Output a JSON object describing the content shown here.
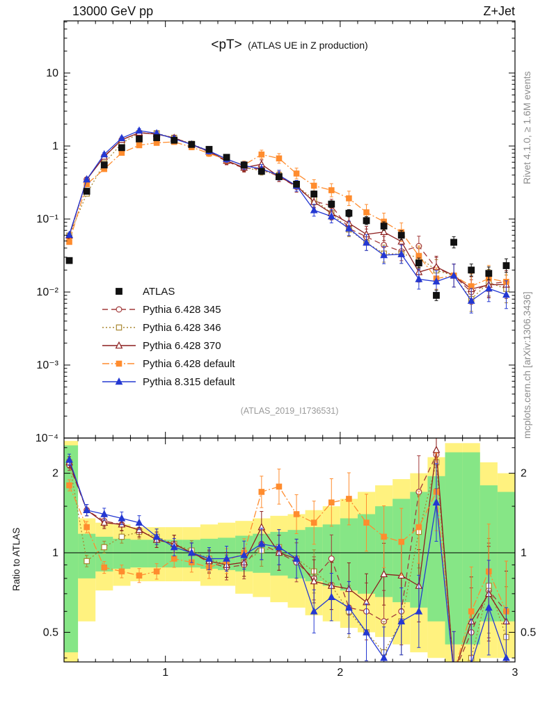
{
  "header": {
    "left": "13000 GeV pp",
    "right": "Z+Jet"
  },
  "panel_title": {
    "main": "<pT>",
    "sub": "(ATLAS UE in Z production)"
  },
  "watermark": "(ATLAS_2019_I1736531)",
  "side_labels": {
    "top": "Rivet 4.1.0, ≥ 1.6M events",
    "bottom": "mcplots.cern.ch [arXiv:1306.3436]"
  },
  "ratio_label": "Ratio to ATLAS",
  "colors": {
    "band_yellow": "#fff27f",
    "band_green": "#86e686",
    "frame": "#000000",
    "muted_text": "#8c8c8c",
    "watermark": "#9a9a9a"
  },
  "axes": {
    "x": {
      "ticks": [
        {
          "v": 1,
          "label": "1"
        },
        {
          "v": 2,
          "label": "2"
        },
        {
          "v": 3,
          "label": "3"
        }
      ]
    },
    "y_top": {
      "ticks": [
        {
          "v": 10,
          "label": "10"
        },
        {
          "v": 1,
          "label": "1"
        },
        {
          "v": 0.1,
          "label": "10⁻¹"
        },
        {
          "v": 0.01,
          "label": "10⁻²"
        },
        {
          "v": 0.001,
          "label": "10⁻³"
        },
        {
          "v": 0.0001,
          "label": "10⁻⁴"
        }
      ]
    },
    "y_ratio": {
      "ticks": [
        {
          "v": 2,
          "label": "2"
        },
        {
          "v": 1,
          "label": "1"
        },
        {
          "v": 0.5,
          "label": "0.5"
        }
      ]
    }
  },
  "legend": {
    "items": [
      {
        "label": "ATLAS"
      },
      {
        "label": "Pythia 6.428 345"
      },
      {
        "label": "Pythia 6.428 346"
      },
      {
        "label": "Pythia 6.428 370"
      },
      {
        "label": "Pythia 6.428 default"
      },
      {
        "label": "Pythia 8.315 default"
      }
    ]
  },
  "chart_data": {
    "type": "line",
    "title": "<pT> (ATLAS UE in Z production)",
    "xlabel": "",
    "ylabel_top": "",
    "ylabel_ratio": "Ratio to ATLAS",
    "x_range": [
      0.42,
      3.0
    ],
    "y_top_range": [
      0.0001,
      50
    ],
    "ratio_range": [
      0.39,
      2.7
    ],
    "x_bin_halfwidth": 0.05,
    "x": [
      0.45,
      0.55,
      0.65,
      0.75,
      0.85,
      0.95,
      1.05,
      1.15,
      1.25,
      1.35,
      1.45,
      1.55,
      1.65,
      1.75,
      1.85,
      1.95,
      2.05,
      2.15,
      2.25,
      2.35,
      2.45,
      2.55,
      2.65,
      2.75,
      2.85,
      2.95
    ],
    "atlas": {
      "name": "ATLAS",
      "color": "#111111",
      "marker": "square",
      "filled": true,
      "line": "none",
      "msize": 4.3,
      "values": [
        0.027,
        0.24,
        0.55,
        0.95,
        1.25,
        1.3,
        1.2,
        1.05,
        0.9,
        0.7,
        0.55,
        0.45,
        0.38,
        0.3,
        0.22,
        0.16,
        0.12,
        0.095,
        0.08,
        0.06,
        0.025,
        0.009,
        0.048,
        0.02,
        0.018,
        0.023
      ]
    },
    "series": [
      {
        "name": "Pythia 6.428 345",
        "color": "#a23a3a",
        "marker": "circle",
        "filled": false,
        "line": "dash",
        "ratio": [
          2.15,
          1.45,
          1.32,
          1.28,
          1.22,
          1.12,
          1.08,
          1.0,
          0.92,
          0.88,
          0.9,
          1.08,
          1.0,
          0.92,
          0.8,
          0.95,
          0.62,
          0.6,
          0.55,
          0.6,
          1.7,
          2.35,
          0.35,
          0.5,
          0.72,
          0.6
        ]
      },
      {
        "name": "Pythia 6.428 346",
        "color": "#a8862f",
        "marker": "square",
        "filled": false,
        "line": "dot",
        "ratio": [
          2.2,
          0.93,
          1.05,
          1.15,
          1.2,
          1.15,
          1.08,
          1.02,
          0.95,
          0.9,
          0.92,
          1.02,
          1.05,
          0.95,
          0.85,
          0.75,
          0.6,
          0.5,
          0.42,
          0.55,
          1.2,
          2.2,
          0.35,
          0.4,
          0.75,
          0.48
        ]
      },
      {
        "name": "Pythia 6.428 370",
        "color": "#8c1f1f",
        "marker": "triangle",
        "filled": false,
        "line": "solid",
        "ratio": [
          2.2,
          1.45,
          1.3,
          1.28,
          1.22,
          1.12,
          1.08,
          1.0,
          0.93,
          0.9,
          0.92,
          1.25,
          1.0,
          0.95,
          0.78,
          0.75,
          0.73,
          0.65,
          0.83,
          0.82,
          0.75,
          2.45,
          0.35,
          0.55,
          0.7,
          0.55
        ]
      },
      {
        "name": "Pythia 6.428 default",
        "color": "#ff8c2e",
        "marker": "square",
        "filled": true,
        "line": "dashdot",
        "ratio": [
          1.8,
          1.25,
          0.88,
          0.85,
          0.82,
          0.85,
          0.95,
          0.92,
          0.88,
          0.93,
          1.0,
          1.7,
          1.78,
          1.4,
          1.3,
          1.55,
          1.6,
          1.3,
          1.15,
          1.1,
          1.25,
          1.7,
          0.35,
          0.6,
          0.85,
          0.6
        ]
      },
      {
        "name": "Pythia 8.315 default",
        "color": "#2438d2",
        "marker": "triangle",
        "filled": true,
        "line": "solid",
        "ratio": [
          2.25,
          1.45,
          1.4,
          1.35,
          1.3,
          1.15,
          1.05,
          1.0,
          0.95,
          0.95,
          0.98,
          1.08,
          1.05,
          0.95,
          0.6,
          0.68,
          0.62,
          0.5,
          0.4,
          0.55,
          0.6,
          1.55,
          0.35,
          0.38,
          0.62,
          0.4
        ]
      }
    ],
    "bands": {
      "yellow": {
        "color": "#fff27f",
        "lo": [
          0.38,
          0.55,
          0.72,
          0.75,
          0.78,
          0.78,
          0.78,
          0.78,
          0.75,
          0.75,
          0.7,
          0.68,
          0.65,
          0.62,
          0.58,
          0.55,
          0.52,
          0.5,
          0.48,
          0.45,
          0.42,
          0.4,
          0.38,
          0.38,
          0.4,
          0.4
        ],
        "hi": [
          2.65,
          1.35,
          1.3,
          1.28,
          1.25,
          1.25,
          1.25,
          1.25,
          1.28,
          1.3,
          1.32,
          1.35,
          1.38,
          1.4,
          1.45,
          1.5,
          1.6,
          1.7,
          1.8,
          1.9,
          2.0,
          2.3,
          2.6,
          2.6,
          2.2,
          2.0
        ]
      },
      "green": {
        "color": "#86e686",
        "lo": [
          0.42,
          0.8,
          0.85,
          0.87,
          0.88,
          0.88,
          0.88,
          0.88,
          0.87,
          0.86,
          0.85,
          0.84,
          0.82,
          0.8,
          0.78,
          0.75,
          0.72,
          0.7,
          0.68,
          0.65,
          0.62,
          0.55,
          0.45,
          0.45,
          0.55,
          0.55
        ],
        "hi": [
          2.55,
          1.18,
          1.15,
          1.13,
          1.12,
          1.12,
          1.12,
          1.12,
          1.13,
          1.14,
          1.16,
          1.18,
          1.2,
          1.22,
          1.25,
          1.28,
          1.35,
          1.4,
          1.5,
          1.6,
          1.7,
          1.95,
          2.4,
          2.4,
          1.8,
          1.7
        ]
      }
    },
    "error_model": {
      "base": 0.05,
      "growth": 0.5,
      "atlas_base": 0.04,
      "atlas_growth": 0.2
    }
  }
}
